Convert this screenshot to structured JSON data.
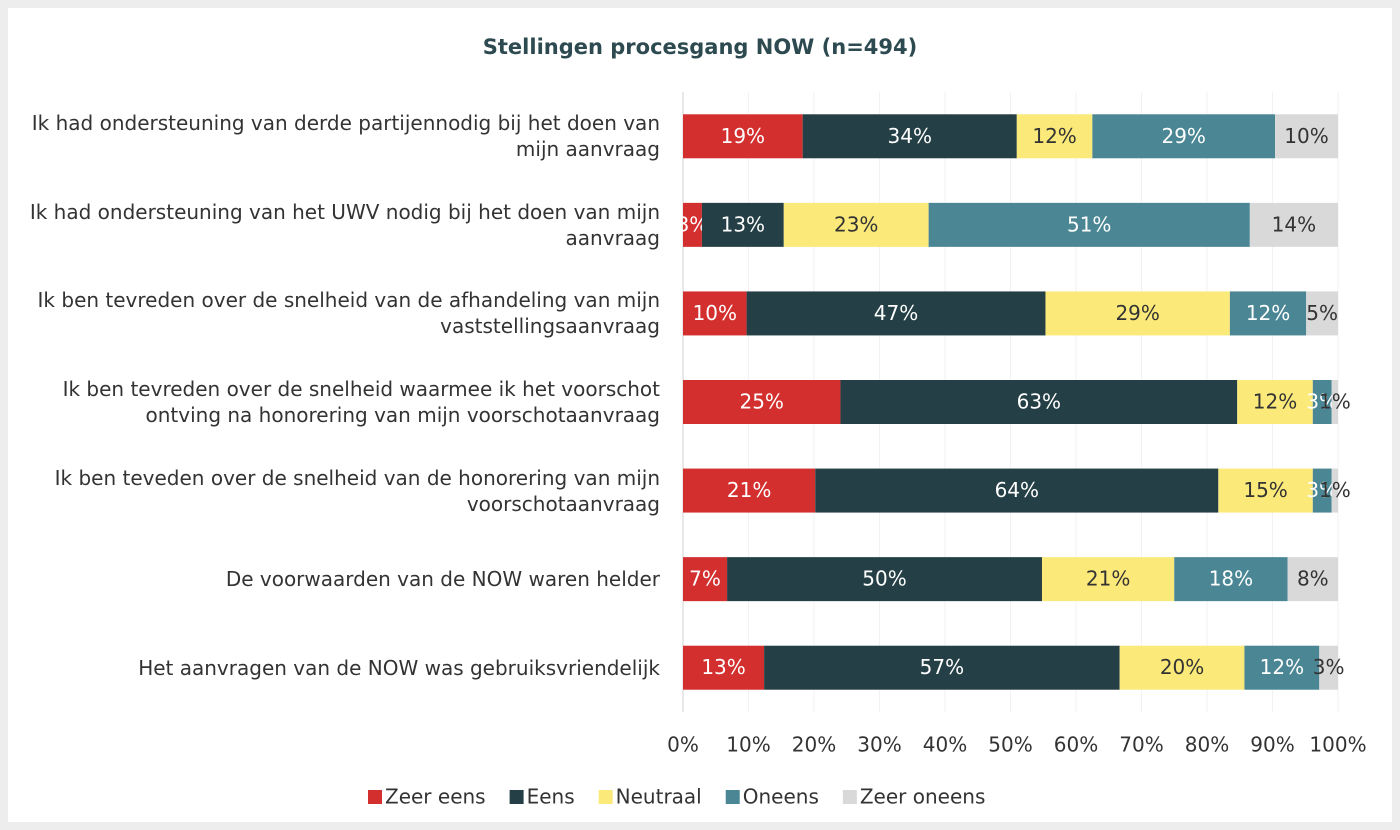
{
  "chart_data": {
    "type": "stacked-bar-horizontal",
    "stacked": "percent",
    "title": "Stellingen procesgang NOW (n=494)",
    "categories": [
      "Ik had ondersteuning van derde partijennodig bij het doen van mijn aanvraag",
      "Ik had ondersteuning van het UWV nodig bij het doen van mijn aanvraag",
      "Ik ben tevreden over de snelheid van de afhandeling van mijn vaststellingsaanvraag",
      "Ik ben tevreden over de snelheid waarmee ik het voorschot ontving na honorering van mijn voorschotaanvraag",
      "Ik ben teveden over de snelheid van de honorering van mijn voorschotaanvraag",
      "De voorwaarden van de NOW waren helder",
      "Het aanvragen van de NOW was gebruiksvriendelijk"
    ],
    "series": [
      {
        "name": "Zeer eens",
        "color": "#d32f2f",
        "values": [
          19,
          3,
          10,
          25,
          21,
          7,
          13
        ],
        "value_labels": [
          "19%",
          "3%",
          "10%",
          "25%",
          "21%",
          "7%",
          "13%"
        ]
      },
      {
        "name": "Eens",
        "color": "#243f45",
        "values": [
          34,
          13,
          47,
          63,
          64,
          50,
          57
        ],
        "value_labels": [
          "34%",
          "13%",
          "47%",
          "63%",
          "64%",
          "50%",
          "57%"
        ]
      },
      {
        "name": "Neutraal",
        "color": "#fbe97a",
        "values": [
          12,
          23,
          29,
          12,
          15,
          21,
          20
        ],
        "value_labels": [
          "12%",
          "23%",
          "29%",
          "12%",
          "15%",
          "21%",
          "20%"
        ]
      },
      {
        "name": "Oneens",
        "color": "#4a8694",
        "values": [
          29,
          51,
          12,
          3,
          3,
          18,
          12
        ],
        "value_labels": [
          "29%",
          "51%",
          "12%",
          "3%",
          "3%",
          "18%",
          "12%"
        ]
      },
      {
        "name": "Zeer oneens",
        "color": "#d9d9d9",
        "values": [
          10,
          14,
          5,
          1,
          1,
          8,
          3
        ],
        "value_labels": [
          "10%",
          "14%",
          "5%",
          "1%",
          "1%",
          "8%",
          "3%"
        ]
      }
    ],
    "xlim": [
      0,
      100
    ],
    "xticks": [
      {
        "value": 0,
        "label": "0%"
      },
      {
        "value": 10,
        "label": "10%"
      },
      {
        "value": 20,
        "label": "20%"
      },
      {
        "value": 30,
        "label": "30%"
      },
      {
        "value": 40,
        "label": "40%"
      },
      {
        "value": 50,
        "label": "50%"
      },
      {
        "value": 60,
        "label": "60%"
      },
      {
        "value": 70,
        "label": "70%"
      },
      {
        "value": 80,
        "label": "80%"
      },
      {
        "value": 90,
        "label": "90%"
      },
      {
        "value": 100,
        "label": "100%"
      }
    ],
    "grid": true,
    "legend": "bottom"
  }
}
